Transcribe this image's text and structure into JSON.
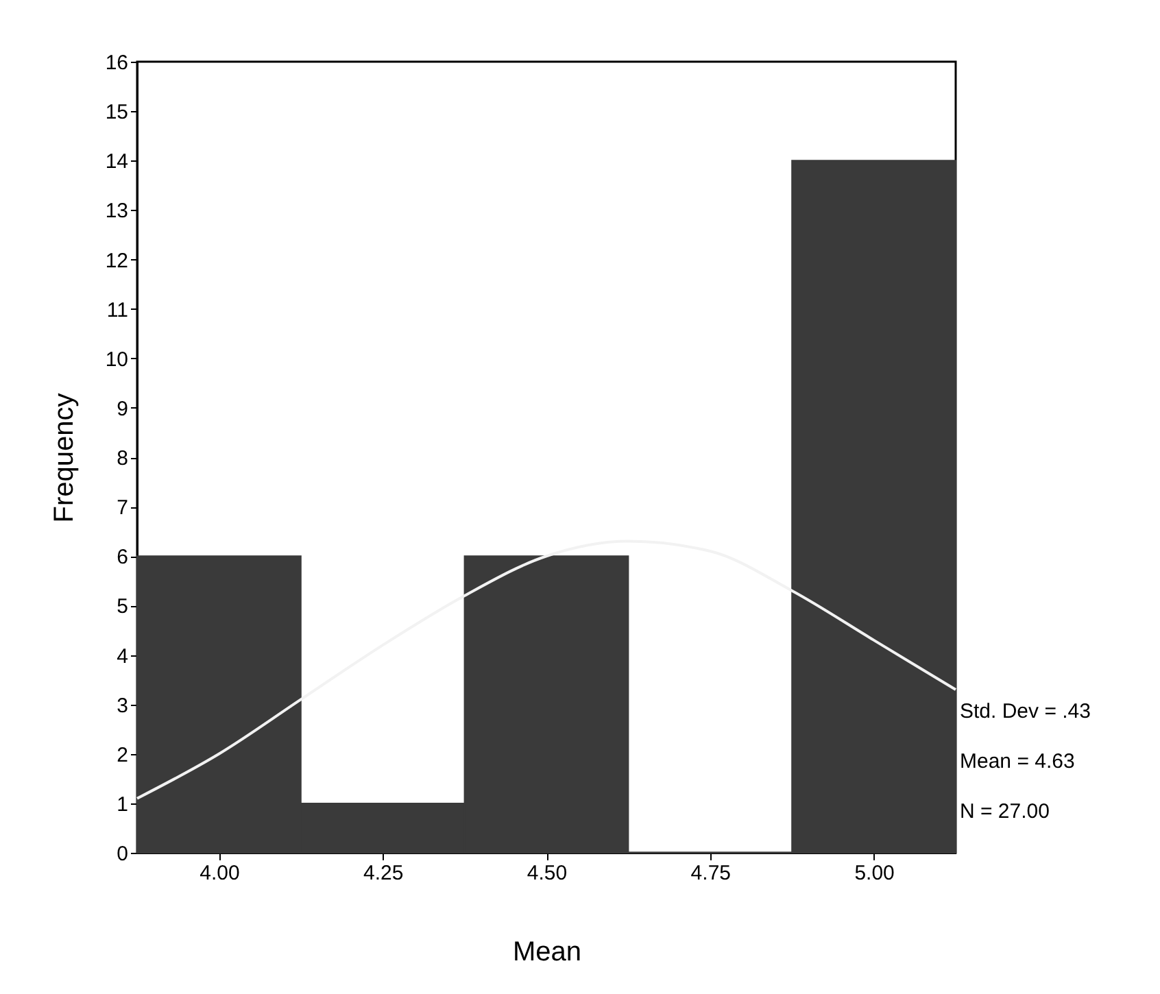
{
  "chart_data": {
    "type": "histogram",
    "xlabel": "Mean",
    "ylabel": "Frequency",
    "bins": [
      3.875,
      4.125,
      4.375,
      4.625,
      4.875,
      5.125
    ],
    "series": [
      {
        "color": "#3a3a3a",
        "values": [
          6,
          1,
          6,
          0,
          14
        ]
      },
      {
        "type": "line",
        "color": "#f2f2f2",
        "x": [
          3.875,
          4.0,
          4.125,
          4.25,
          4.375,
          4.5,
          4.625,
          4.75,
          4.875,
          5.0,
          5.125
        ],
        "values": [
          1.1,
          2.0,
          3.1,
          4.2,
          5.2,
          6.0,
          6.3,
          6.1,
          5.3,
          4.3,
          3.3
        ]
      }
    ],
    "xlim": [
      3.875,
      5.125
    ],
    "xticks": [
      {
        "value": 4,
        "label": "4.00"
      },
      {
        "value": 4.25,
        "label": "4.25"
      },
      {
        "value": 4.5,
        "label": "4.50"
      },
      {
        "value": 4.75,
        "label": "4.75"
      },
      {
        "value": 5,
        "label": "5.00"
      }
    ],
    "ylim": [
      0,
      16
    ],
    "yticks": [
      0,
      1,
      2,
      3,
      4,
      5,
      6,
      7,
      8,
      9,
      10,
      11,
      12,
      13,
      14,
      15,
      16
    ],
    "grid": false,
    "annotations": [
      "Std. Dev = .43",
      "Mean = 4.63",
      "N = 27.00"
    ]
  }
}
